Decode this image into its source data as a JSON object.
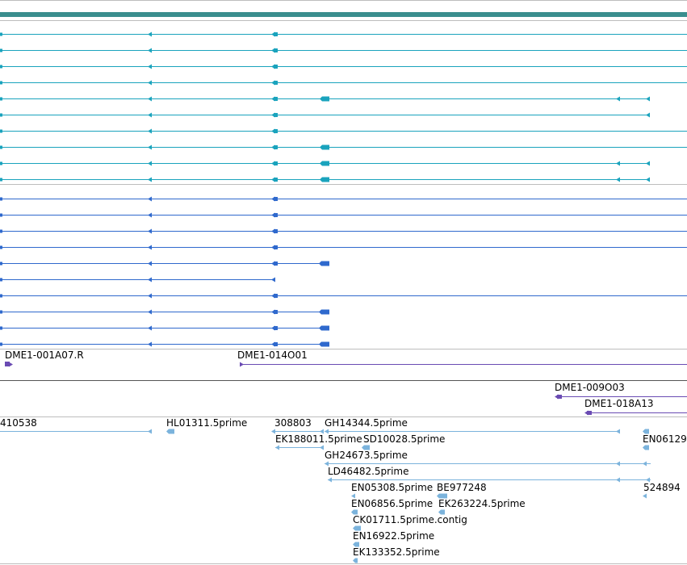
{
  "colors": {
    "track_bar": "#3a8e8e",
    "cyan": "#1aa3bd",
    "blue": "#2f69cd",
    "purple": "#6a4bb3",
    "light": "#7bb3dc",
    "divider": "#bdbdbd"
  },
  "genome_labels": {
    "dme1_001a07": "DME1-001A07.R",
    "dme1_014o01": "DME1-014O01",
    "dme1_009o03": "DME1-009O03",
    "dme1_018a13": "DME1-018A13"
  },
  "est_labels": {
    "l410538": "410538",
    "hl01311": "HL01311.5prime",
    "l308803": "308803",
    "gh14344": "GH14344.5prime",
    "ek188011": "EK188011.5prime",
    "sd10028": "SD10028.5prime",
    "en06129": "EN06129",
    "gh24673": "GH24673.5prime",
    "ld46482": "LD46482.5prime",
    "en05308": "EN05308.5prime",
    "be977248": "BE977248",
    "l524894": "524894",
    "en06856": "EN06856.5prime",
    "ek263224": "EK263224.5prime",
    "ck01711": "CK01711.5prime.contig",
    "en16922": "EN16922.5prime",
    "ek133352": "EK133352.5prime"
  }
}
